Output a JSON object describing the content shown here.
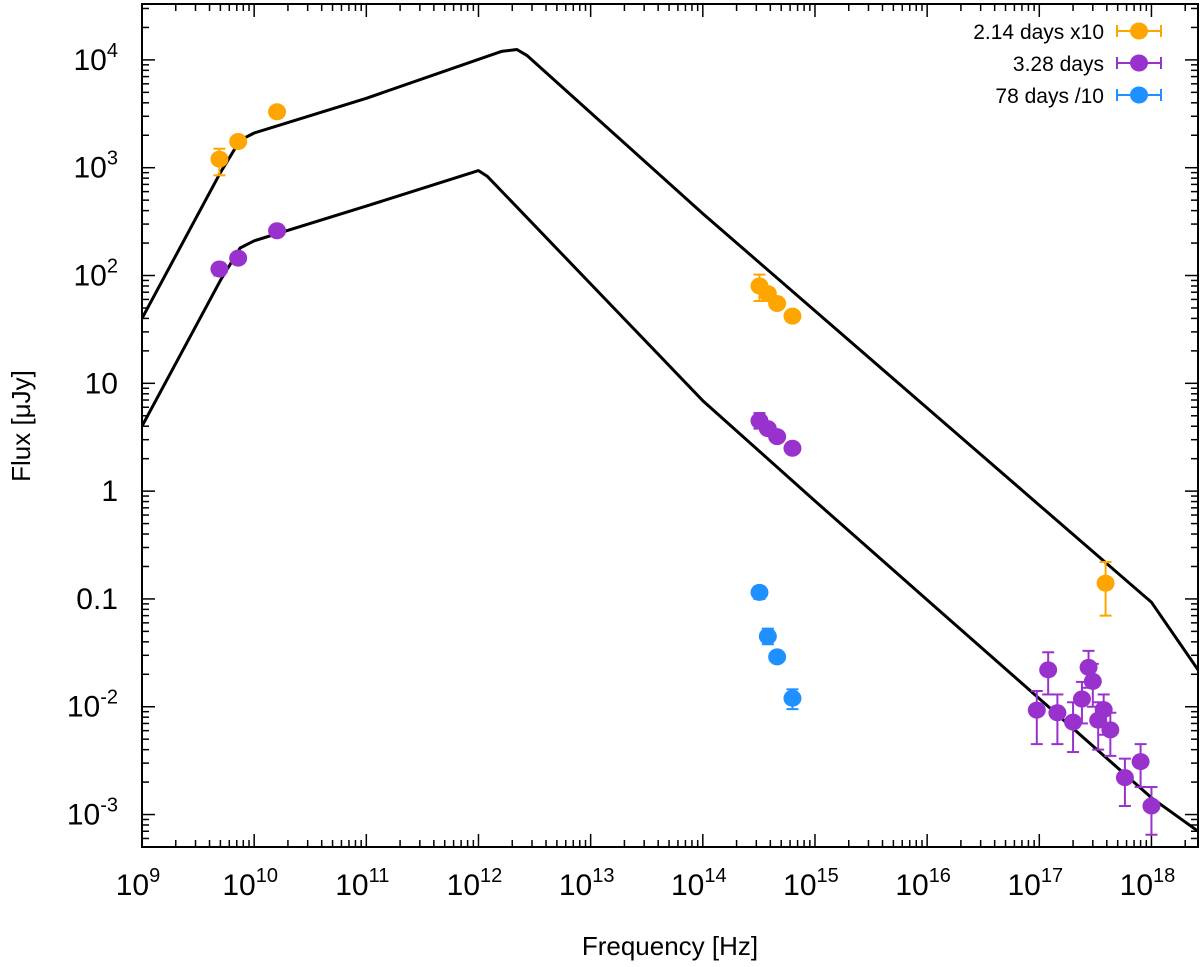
{
  "chart_data": {
    "type": "scatter",
    "title": "",
    "xlabel": "Frequency [Hz]",
    "ylabel": "Flux [μJy]",
    "xscale": "log",
    "yscale": "log",
    "xlim": [
      1000000000.0,
      2.6e+18
    ],
    "ylim": [
      0.0005,
      33000
    ],
    "grid": false,
    "legend_position": "top-right",
    "x_ticks": [
      {
        "value": 1000000000.0,
        "base": "10",
        "exp": "9"
      },
      {
        "value": 10000000000.0,
        "base": "10",
        "exp": "10"
      },
      {
        "value": 100000000000.0,
        "base": "10",
        "exp": "11"
      },
      {
        "value": 1000000000000.0,
        "base": "10",
        "exp": "12"
      },
      {
        "value": 10000000000000.0,
        "base": "10",
        "exp": "13"
      },
      {
        "value": 100000000000000.0,
        "base": "10",
        "exp": "14"
      },
      {
        "value": 1000000000000000.0,
        "base": "10",
        "exp": "15"
      },
      {
        "value": 1e+16,
        "base": "10",
        "exp": "16"
      },
      {
        "value": 1e+17,
        "base": "10",
        "exp": "17"
      },
      {
        "value": 1e+18,
        "base": "10",
        "exp": "18"
      }
    ],
    "y_ticks": [
      {
        "value": 0.001,
        "base": "10",
        "exp": "-3"
      },
      {
        "value": 0.01,
        "base": "10",
        "exp": "-2"
      },
      {
        "value": 0.1,
        "base": "0.1",
        "exp": ""
      },
      {
        "value": 1,
        "base": "1",
        "exp": ""
      },
      {
        "value": 10,
        "base": "10",
        "exp": ""
      },
      {
        "value": 100,
        "base": "10",
        "exp": "2"
      },
      {
        "value": 1000,
        "base": "10",
        "exp": "3"
      },
      {
        "value": 10000,
        "base": "10",
        "exp": "4"
      }
    ],
    "models": [
      {
        "name": "model-2.14-days",
        "color": "#000000",
        "x": [
          1000000000.0,
          5000000000.0,
          7500000000.0,
          10000000000.0,
          100000000000.0,
          1600000000000.0,
          2200000000000.0,
          2700000000000.0,
          100000000000000.0,
          1000000000000000.0,
          1e+16,
          1e+17,
          1e+18,
          2.6e+18
        ],
        "y": [
          40,
          900,
          1800,
          2100,
          4400,
          12000,
          12500,
          11000,
          375,
          47,
          5.9,
          0.74,
          0.093,
          0.022
        ]
      },
      {
        "name": "model-3.28-days",
        "color": "#000000",
        "x": [
          1000000000.0,
          5000000000.0,
          7500000000.0,
          10000000000.0,
          100000000000.0,
          1000000000000.0,
          1200000000000.0,
          100000000000000.0,
          1000000000000000.0,
          1e+16,
          1e+17,
          1e+18,
          2.6e+18
        ],
        "y": [
          4,
          90,
          180,
          210,
          440,
          940,
          830,
          6.9,
          0.81,
          0.098,
          0.0119,
          0.00143,
          0.0007
        ]
      }
    ],
    "series": [
      {
        "name": "2.14 days x10",
        "color": "#ffa500",
        "points": [
          {
            "x": 4900000000.0,
            "y": 1200,
            "err": [
              850,
              1500
            ]
          },
          {
            "x": 7200000000.0,
            "y": 1750,
            "err": null
          },
          {
            "x": 16000000000.0,
            "y": 3300,
            "err": null
          },
          {
            "x": 320000000000000.0,
            "y": 80,
            "err": [
              58,
              102
            ]
          },
          {
            "x": 380000000000000.0,
            "y": 68,
            "err": null
          },
          {
            "x": 460000000000000.0,
            "y": 55,
            "err": null
          },
          {
            "x": 630000000000000.0,
            "y": 42,
            "err": null
          },
          {
            "x": 3.9e+17,
            "y": 0.14,
            "err": [
              0.07,
              0.22
            ]
          }
        ]
      },
      {
        "name": "3.28 days",
        "color": "#9932cc",
        "points": [
          {
            "x": 4900000000.0,
            "y": 115,
            "err": [
              100,
              130
            ]
          },
          {
            "x": 7200000000.0,
            "y": 145,
            "err": null
          },
          {
            "x": 16000000000.0,
            "y": 260,
            "err": null
          },
          {
            "x": 320000000000000.0,
            "y": 4.5,
            "err": [
              3.8,
              5.3
            ]
          },
          {
            "x": 380000000000000.0,
            "y": 3.8,
            "err": null
          },
          {
            "x": 460000000000000.0,
            "y": 3.2,
            "err": null
          },
          {
            "x": 630000000000000.0,
            "y": 2.5,
            "err": null
          },
          {
            "x": 9.5e+16,
            "y": 0.0093,
            "err": [
              0.0045,
              0.014
            ]
          },
          {
            "x": 1.2e+17,
            "y": 0.022,
            "err": [
              0.013,
              0.032
            ]
          },
          {
            "x": 1.45e+17,
            "y": 0.0088,
            "err": [
              0.0045,
              0.013
            ]
          },
          {
            "x": 2e+17,
            "y": 0.0072,
            "err": [
              0.0038,
              0.011
            ]
          },
          {
            "x": 2.4e+17,
            "y": 0.0118,
            "err": [
              0.007,
              0.017
            ]
          },
          {
            "x": 2.75e+17,
            "y": 0.0232,
            "err": [
              0.015,
              0.033
            ]
          },
          {
            "x": 3e+17,
            "y": 0.0172,
            "err": [
              0.01,
              0.025
            ]
          },
          {
            "x": 3.35e+17,
            "y": 0.0075,
            "err": [
              0.004,
              0.011
            ]
          },
          {
            "x": 3.75e+17,
            "y": 0.0094,
            "err": [
              0.0055,
              0.013
            ]
          },
          {
            "x": 4.3e+17,
            "y": 0.0061,
            "err": [
              0.0035,
              0.0088
            ]
          },
          {
            "x": 5.8e+17,
            "y": 0.0022,
            "err": [
              0.0012,
              0.0033
            ]
          },
          {
            "x": 8e+17,
            "y": 0.0031,
            "err": [
              0.0018,
              0.0045
            ]
          },
          {
            "x": 1e+18,
            "y": 0.0012,
            "err": [
              0.00065,
              0.0018
            ]
          }
        ]
      },
      {
        "name": "78 days /10",
        "color": "#1e90ff",
        "points": [
          {
            "x": 320000000000000.0,
            "y": 0.115,
            "err": [
              0.1,
              0.13
            ]
          },
          {
            "x": 380000000000000.0,
            "y": 0.045,
            "err": [
              0.038,
              0.053
            ]
          },
          {
            "x": 460000000000000.0,
            "y": 0.029,
            "err": null
          },
          {
            "x": 630000000000000.0,
            "y": 0.012,
            "err": [
              0.0095,
              0.0145
            ]
          }
        ]
      }
    ]
  }
}
